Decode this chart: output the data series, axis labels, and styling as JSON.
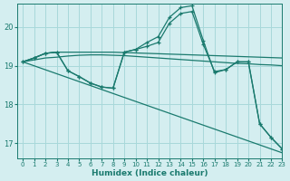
{
  "xlabel": "Humidex (Indice chaleur)",
  "bg_color": "#d4eef0",
  "grid_color": "#a8d8da",
  "line_color": "#1a7a6e",
  "xlim": [
    -0.5,
    23
  ],
  "ylim": [
    16.6,
    20.6
  ],
  "yticks": [
    17,
    18,
    19,
    20
  ],
  "xticks": [
    0,
    1,
    2,
    3,
    4,
    5,
    6,
    7,
    8,
    9,
    10,
    11,
    12,
    13,
    14,
    15,
    16,
    17,
    18,
    19,
    20,
    21,
    22,
    23
  ],
  "series": [
    {
      "x": [
        0,
        1,
        2,
        3,
        4,
        5,
        6,
        7,
        8,
        9,
        10,
        11,
        12,
        13,
        14,
        15,
        16,
        17,
        18,
        19,
        20,
        21,
        22,
        23
      ],
      "y": [
        19.1,
        19.15,
        19.2,
        19.22,
        19.25,
        19.27,
        19.28,
        19.28,
        19.27,
        19.26,
        19.24,
        19.22,
        19.2,
        19.18,
        19.16,
        19.14,
        19.12,
        19.1,
        19.08,
        19.06,
        19.05,
        19.03,
        19.02,
        19.0
      ],
      "has_markers": false
    },
    {
      "x": [
        0,
        1,
        2,
        3,
        4,
        5,
        6,
        7,
        8,
        9,
        10,
        11,
        12,
        13,
        14,
        15,
        16,
        17,
        18,
        19,
        20,
        21,
        22,
        23
      ],
      "y": [
        19.1,
        19.2,
        19.32,
        19.35,
        19.35,
        19.35,
        19.35,
        19.35,
        19.35,
        19.34,
        19.33,
        19.32,
        19.31,
        19.3,
        19.29,
        19.28,
        19.27,
        19.26,
        19.25,
        19.24,
        19.23,
        19.22,
        19.21,
        19.2
      ],
      "has_markers": false
    },
    {
      "x": [
        0,
        1,
        2,
        3,
        4,
        5,
        6,
        7,
        8,
        9,
        10,
        11,
        12,
        13,
        14,
        15,
        16,
        17,
        18,
        19,
        20,
        21,
        22,
        23
      ],
      "y": [
        19.1,
        19.2,
        19.32,
        19.35,
        18.87,
        18.72,
        18.55,
        18.45,
        18.42,
        19.35,
        19.42,
        19.5,
        19.6,
        20.1,
        20.35,
        20.4,
        19.55,
        18.85,
        18.9,
        19.1,
        19.1,
        17.5,
        17.15,
        16.85
      ],
      "has_markers": true
    },
    {
      "x": [
        0,
        1,
        2,
        3,
        4,
        5,
        6,
        7,
        8,
        9,
        10,
        11,
        12,
        13,
        14,
        15,
        16,
        17,
        18,
        19,
        20,
        21,
        22,
        23
      ],
      "y": [
        19.1,
        19.2,
        19.32,
        19.35,
        18.87,
        18.72,
        18.55,
        18.45,
        18.42,
        19.35,
        19.42,
        19.6,
        19.75,
        20.25,
        20.5,
        20.55,
        19.65,
        18.82,
        18.9,
        19.1,
        19.1,
        17.5,
        17.15,
        16.85
      ],
      "has_markers": true
    }
  ],
  "series_diagonal": {
    "x": [
      0,
      23
    ],
    "y": [
      19.1,
      16.75
    ]
  }
}
